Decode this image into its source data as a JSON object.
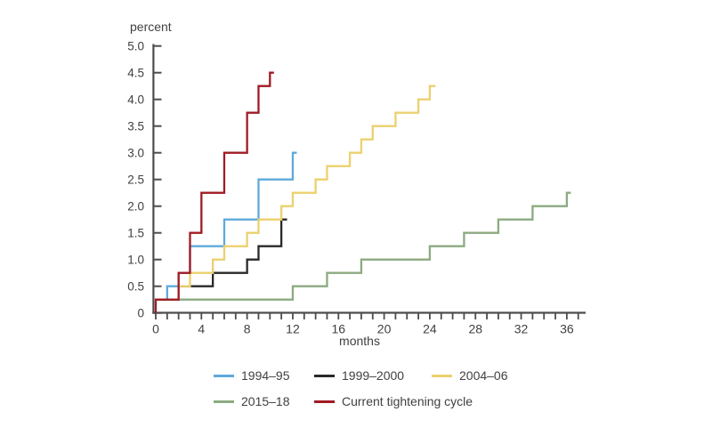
{
  "figure": {
    "background": "#ffffff",
    "axis_color": "#4d4d4f",
    "text_color": "#414042"
  },
  "chart_data": {
    "type": "line",
    "line_style": "step",
    "title": "",
    "ylabel": "percent",
    "xlabel": "months",
    "grid": false,
    "legend_position": "bottom",
    "xlim": [
      0,
      37.5
    ],
    "ylim": [
      0,
      5.0
    ],
    "x_minor_tick_step": 1,
    "x_minor_tick_max": 37,
    "x_ticks": [
      {
        "value": 0,
        "label": "0"
      },
      {
        "value": 4,
        "label": "4"
      },
      {
        "value": 8,
        "label": "8"
      },
      {
        "value": 12,
        "label": "12"
      },
      {
        "value": 16,
        "label": "16"
      },
      {
        "value": 20,
        "label": "20"
      },
      {
        "value": 24,
        "label": "24"
      },
      {
        "value": 28,
        "label": "28"
      },
      {
        "value": 32,
        "label": "32"
      },
      {
        "value": 36,
        "label": "36"
      }
    ],
    "y_ticks": [
      {
        "value": 0,
        "label": "0"
      },
      {
        "value": 0.5,
        "label": "0.5"
      },
      {
        "value": 1.0,
        "label": "1.0"
      },
      {
        "value": 1.5,
        "label": "1.5"
      },
      {
        "value": 2.0,
        "label": "2.0"
      },
      {
        "value": 2.5,
        "label": "2.5"
      },
      {
        "value": 3.0,
        "label": "3.0"
      },
      {
        "value": 3.5,
        "label": "3.5"
      },
      {
        "value": 4.0,
        "label": "4.0"
      },
      {
        "value": 4.5,
        "label": "4.5"
      },
      {
        "value": 5.0,
        "label": "5.0"
      }
    ],
    "series": [
      {
        "name": "1994–95",
        "color": "#5fa9db",
        "starts_at_zero": false,
        "steps": [
          [
            0,
            0.25
          ],
          [
            1,
            0.5
          ],
          [
            2,
            0.75
          ],
          [
            3,
            1.25
          ],
          [
            6,
            1.75
          ],
          [
            9,
            2.5
          ],
          [
            12,
            3.0
          ]
        ],
        "end_month": 12.35
      },
      {
        "name": "1999–2000",
        "color": "#29292b",
        "starts_at_zero": false,
        "steps": [
          [
            0,
            0.25
          ],
          [
            2,
            0.5
          ],
          [
            5,
            0.75
          ],
          [
            8,
            1.0
          ],
          [
            9,
            1.25
          ],
          [
            11,
            1.75
          ]
        ],
        "end_month": 11.5
      },
      {
        "name": "2004–06",
        "color": "#ecd06e",
        "starts_at_zero": false,
        "steps": [
          [
            0,
            0.25
          ],
          [
            2,
            0.5
          ],
          [
            3,
            0.75
          ],
          [
            5,
            1.0
          ],
          [
            6,
            1.25
          ],
          [
            8,
            1.5
          ],
          [
            9,
            1.75
          ],
          [
            11,
            2.0
          ],
          [
            12,
            2.25
          ],
          [
            14,
            2.5
          ],
          [
            15,
            2.75
          ],
          [
            17,
            3.0
          ],
          [
            18,
            3.25
          ],
          [
            19,
            3.5
          ],
          [
            21,
            3.75
          ],
          [
            23,
            4.0
          ],
          [
            24,
            4.25
          ]
        ],
        "end_month": 24.5
      },
      {
        "name": "2015–18",
        "color": "#8caa80",
        "starts_at_zero": false,
        "steps": [
          [
            0,
            0.25
          ],
          [
            12,
            0.5
          ],
          [
            15,
            0.75
          ],
          [
            18,
            1.0
          ],
          [
            24,
            1.25
          ],
          [
            27,
            1.5
          ],
          [
            30,
            1.75
          ],
          [
            33,
            2.0
          ],
          [
            36,
            2.25
          ]
        ],
        "end_month": 36.35
      },
      {
        "name": "Current tightening cycle",
        "color": "#a01b24",
        "starts_at_zero": true,
        "steps": [
          [
            0,
            0.25
          ],
          [
            2,
            0.75
          ],
          [
            3,
            1.5
          ],
          [
            4,
            2.25
          ],
          [
            6,
            3.0
          ],
          [
            8,
            3.75
          ],
          [
            9,
            4.25
          ],
          [
            10,
            4.5
          ]
        ],
        "end_month": 10.35
      }
    ]
  }
}
